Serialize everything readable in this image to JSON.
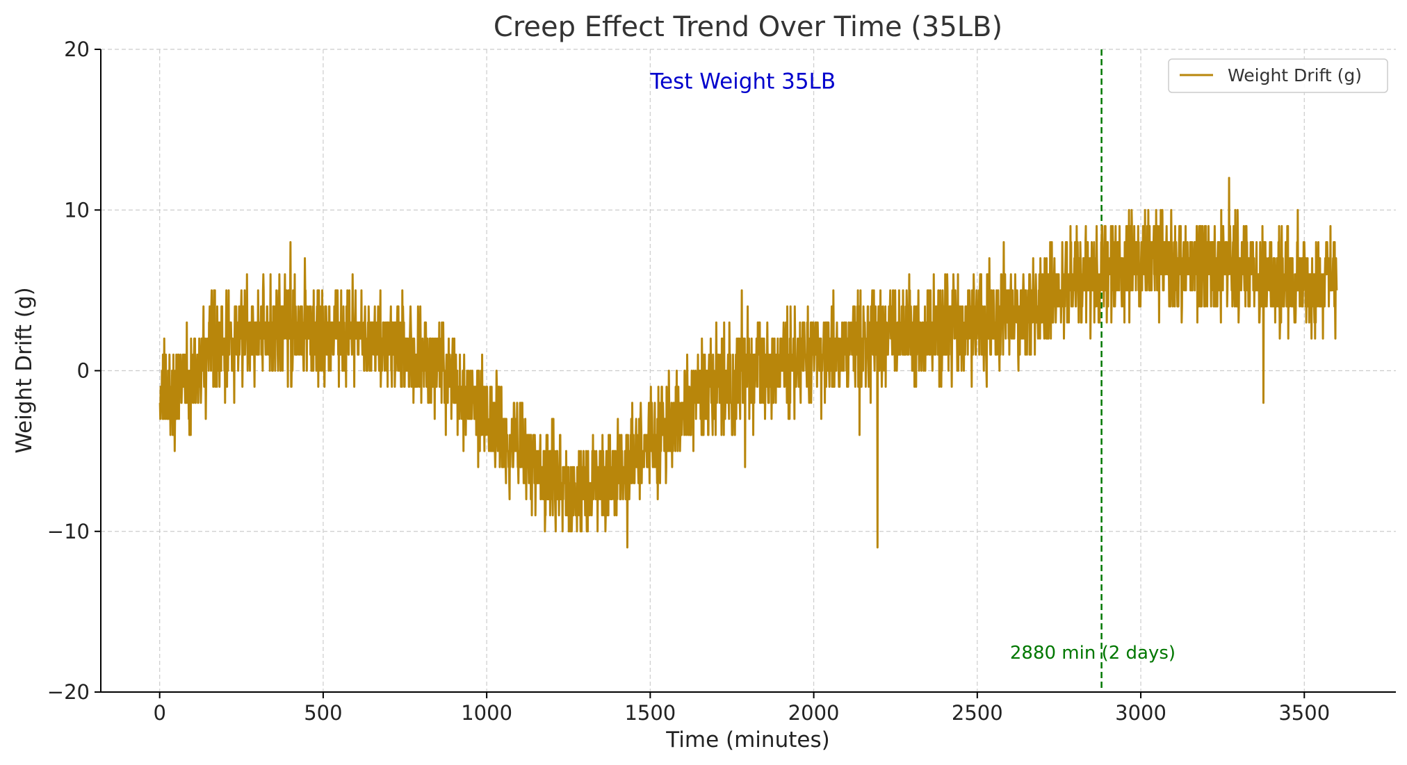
{
  "chart_data": {
    "type": "line",
    "title": "Creep Effect Trend Over Time (35LB)",
    "xlabel": "Time (minutes)",
    "ylabel": "Weight Drift (g)",
    "xlim": [
      -180,
      3780
    ],
    "ylim": [
      -20,
      20
    ],
    "x_ticks": [
      0,
      500,
      1000,
      1500,
      2000,
      2500,
      3000,
      3500
    ],
    "y_ticks": [
      -20,
      -10,
      0,
      10,
      20
    ],
    "y_tick_labels": [
      "−20",
      "−10",
      "0",
      "10",
      "20"
    ],
    "x_tick_labels": [
      "0",
      "500",
      "1000",
      "1500",
      "2000",
      "2500",
      "3000",
      "3500"
    ],
    "grid": true,
    "legend_position": "top-right",
    "series": [
      {
        "name": "Weight Drift (g)",
        "color": "#b8860b",
        "x_start": 0,
        "x_step": 1,
        "trend_anchors": [
          [
            0,
            -2.0
          ],
          [
            50,
            -1.0
          ],
          [
            100,
            -0.5
          ],
          [
            150,
            1.0
          ],
          [
            200,
            1.8
          ],
          [
            250,
            2.4
          ],
          [
            300,
            2.6
          ],
          [
            350,
            2.6
          ],
          [
            400,
            2.5
          ],
          [
            450,
            2.5
          ],
          [
            500,
            2.4
          ],
          [
            550,
            2.4
          ],
          [
            600,
            2.3
          ],
          [
            650,
            2.0
          ],
          [
            700,
            1.5
          ],
          [
            750,
            1.2
          ],
          [
            800,
            0.7
          ],
          [
            850,
            0.2
          ],
          [
            900,
            -0.8
          ],
          [
            950,
            -1.8
          ],
          [
            1000,
            -3.0
          ],
          [
            1050,
            -4.0
          ],
          [
            1100,
            -4.8
          ],
          [
            1150,
            -5.6
          ],
          [
            1200,
            -6.6
          ],
          [
            1250,
            -7.4
          ],
          [
            1300,
            -7.2
          ],
          [
            1350,
            -6.6
          ],
          [
            1400,
            -6.0
          ],
          [
            1450,
            -5.3
          ],
          [
            1500,
            -4.5
          ],
          [
            1550,
            -3.7
          ],
          [
            1600,
            -2.6
          ],
          [
            1650,
            -1.8
          ],
          [
            1700,
            -1.0
          ],
          [
            1750,
            -0.4
          ],
          [
            1800,
            0.0
          ],
          [
            1850,
            0.2
          ],
          [
            1900,
            0.3
          ],
          [
            1950,
            0.4
          ],
          [
            2000,
            0.6
          ],
          [
            2050,
            0.9
          ],
          [
            2100,
            1.3
          ],
          [
            2150,
            1.6
          ],
          [
            2200,
            2.0
          ],
          [
            2250,
            2.2
          ],
          [
            2300,
            2.4
          ],
          [
            2350,
            2.5
          ],
          [
            2400,
            2.6
          ],
          [
            2450,
            2.8
          ],
          [
            2500,
            3.0
          ],
          [
            2550,
            3.2
          ],
          [
            2600,
            3.4
          ],
          [
            2650,
            3.8
          ],
          [
            2700,
            4.4
          ],
          [
            2750,
            5.0
          ],
          [
            2800,
            5.6
          ],
          [
            2850,
            5.8
          ],
          [
            2880,
            6.0
          ],
          [
            2950,
            6.6
          ],
          [
            3000,
            7.0
          ],
          [
            3050,
            7.0
          ],
          [
            3100,
            6.7
          ],
          [
            3150,
            6.4
          ],
          [
            3200,
            6.5
          ],
          [
            3250,
            6.7
          ],
          [
            3300,
            6.5
          ],
          [
            3350,
            6.0
          ],
          [
            3400,
            5.7
          ],
          [
            3450,
            5.4
          ],
          [
            3500,
            5.5
          ],
          [
            3550,
            5.6
          ],
          [
            3599,
            6.0
          ]
        ],
        "noise_amplitude": 1.5,
        "spikes": [
          [
            400,
            8
          ],
          [
            590,
            6
          ],
          [
            1430,
            -11
          ],
          [
            1780,
            5
          ],
          [
            1790,
            -6
          ],
          [
            2195,
            -11
          ],
          [
            2140,
            -4
          ],
          [
            3270,
            12
          ],
          [
            3375,
            -2
          ],
          [
            3480,
            10
          ]
        ]
      }
    ],
    "annotations": [
      {
        "text": "Test Weight 35LB",
        "x": 1500,
        "y": 18,
        "color": "#0000cc"
      },
      {
        "text": "2880 min (2 days)",
        "x": 2600,
        "y": -17.5,
        "color": "#007700"
      }
    ],
    "vlines": [
      {
        "x": 2880,
        "color": "#007700",
        "style": "dashed"
      }
    ]
  }
}
